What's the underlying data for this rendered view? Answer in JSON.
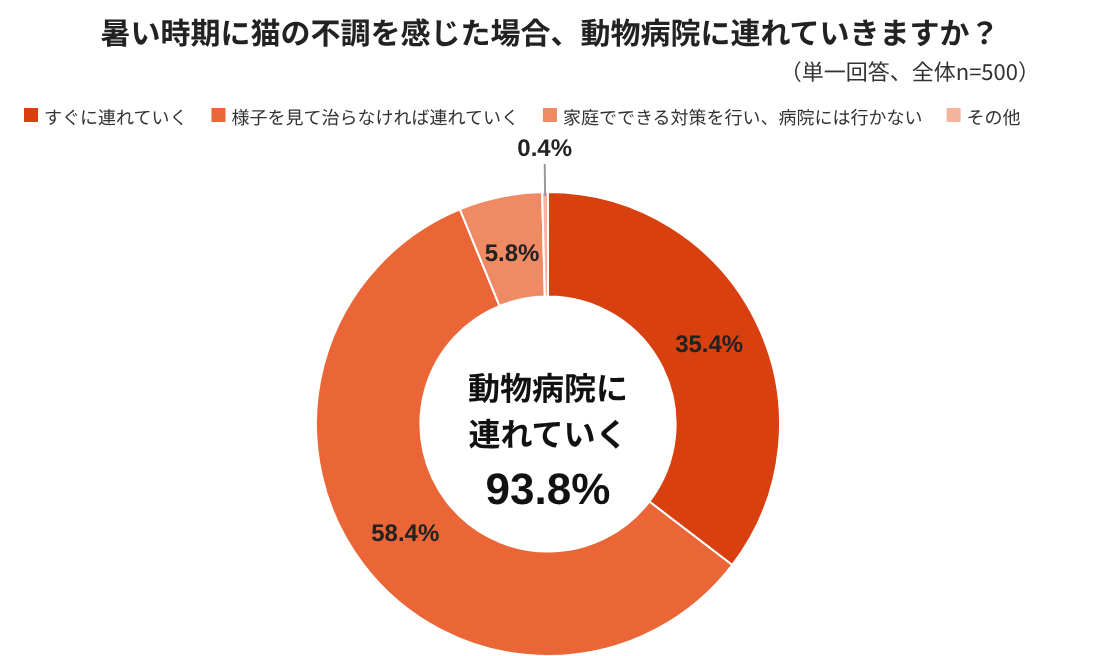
{
  "chart_data": {
    "type": "donut",
    "title": "暑い時期に猫の不調を感じた場合、動物病院に連れていきますか？",
    "subtitle": "（単一回答、全体n=500）",
    "categories": [
      "すぐに連れていく",
      "様子を見て治らなければ連れていく",
      "家庭でできる対策を行い、病院には行かない",
      "その他"
    ],
    "values": [
      35.4,
      58.4,
      5.8,
      0.4
    ],
    "colors": [
      "#d9400f",
      "#ea6637",
      "#ee8a64",
      "#f3b59c"
    ],
    "value_labels": [
      "35.4%",
      "58.4%",
      "5.8%",
      "0.4%"
    ],
    "legend": "top",
    "annotations": [
      "動物病院に",
      "連れていく",
      "93.8%"
    ]
  }
}
